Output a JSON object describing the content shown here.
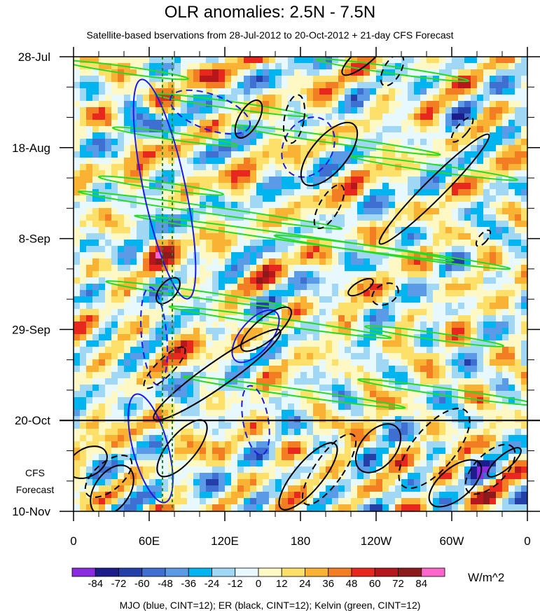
{
  "chart_data": {
    "type": "heatmap",
    "title": "OLR anomalies: 2.5N - 7.5N",
    "subtitle": "Satellite-based bservations from 28-Jul-2012 to 20-Oct-2012 + 21-day CFS Forecast",
    "y_ticks": [
      "28-Jul",
      "18-Aug",
      "8-Sep",
      "29-Sep",
      "20-Oct",
      "10-Nov"
    ],
    "x_ticks": [
      "0",
      "60E",
      "120E",
      "180",
      "120W",
      "60W",
      "0"
    ],
    "x_range_deg": [
      0,
      360
    ],
    "forecast_label": [
      "CFS",
      "Forecast"
    ],
    "colorbar": {
      "levels": [
        "-84",
        "-72",
        "-60",
        "-48",
        "-36",
        "-24",
        "-12",
        "0",
        "12",
        "24",
        "36",
        "48",
        "60",
        "72",
        "84"
      ],
      "colors": [
        "#8a2be2",
        "#1c1c8c",
        "#2440a8",
        "#3f6fd0",
        "#5a9ae6",
        "#00b4f0",
        "#9fd7f5",
        "#e8f8ff",
        "#fdf8c4",
        "#fde06a",
        "#f9b233",
        "#f37d22",
        "#e8281e",
        "#b5171c",
        "#8c1a1a",
        "#ff66cc"
      ],
      "unit": "W/m^2"
    },
    "legend_text": "MJO (blue, CINT=12); ER (black, CINT=12); Kelvin (green, CINT=12)",
    "series": [
      {
        "name": "MJO",
        "color": "blue"
      },
      {
        "name": "ER",
        "color": "black"
      },
      {
        "name": "Kelvin",
        "color": "green"
      }
    ]
  }
}
